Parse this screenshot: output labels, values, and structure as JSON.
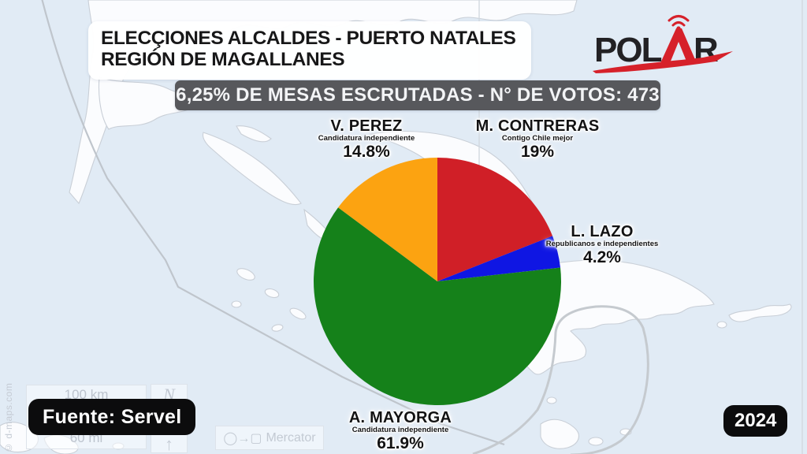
{
  "header": {
    "title_line1": "ELECÇIONES ALCALDES - PUERTO NATALES",
    "title_line2": "REGIÓN DE MAGALLANES",
    "banner": "6,25% DE MESAS ESCRUTADAS - N° DE VOTOS: 473"
  },
  "logo": {
    "brand": "POLAR",
    "text_pre": "POL",
    "text_post": "R",
    "accent_color": "#d6212a",
    "dark_color": "#222124"
  },
  "chart_data": {
    "type": "pie",
    "title": "Elecciones Alcaldes - Puerto Natales, Región de Magallanes",
    "units": "%",
    "start_angle_deg": -90,
    "direction": "clockwise",
    "legend_position": "labels-around-pie",
    "series": [
      {
        "label": "M. CONTRERAS",
        "sublabel": "Contigo Chile mejor",
        "value": 19,
        "display": "19%",
        "color": "#d01f27"
      },
      {
        "label": "L. LAZO",
        "sublabel": "Republicanos e independientes",
        "value": 4.2,
        "display": "4.2%",
        "color": "#0f16e3"
      },
      {
        "label": "A. MAYORGA",
        "sublabel": "Candidatura independiente",
        "value": 61.9,
        "display": "61.9%",
        "color": "#15811a"
      },
      {
        "label": "V. PEREZ",
        "sublabel": "Candidatura independiente",
        "value": 14.8,
        "display": "14.8%",
        "color": "#fca311"
      }
    ]
  },
  "footer": {
    "source": "Fuente: Servel",
    "year": "2024"
  },
  "map": {
    "attribution": "© d-maps.com",
    "scale_km": "100 km",
    "scale_mi": "60 mi",
    "compass": "N",
    "compass_arrow": "↑",
    "projection": "Mercator",
    "projection_icons": "◯→▢",
    "sea_color": "#e1ebf5",
    "land_color": "#fbfcfe"
  }
}
